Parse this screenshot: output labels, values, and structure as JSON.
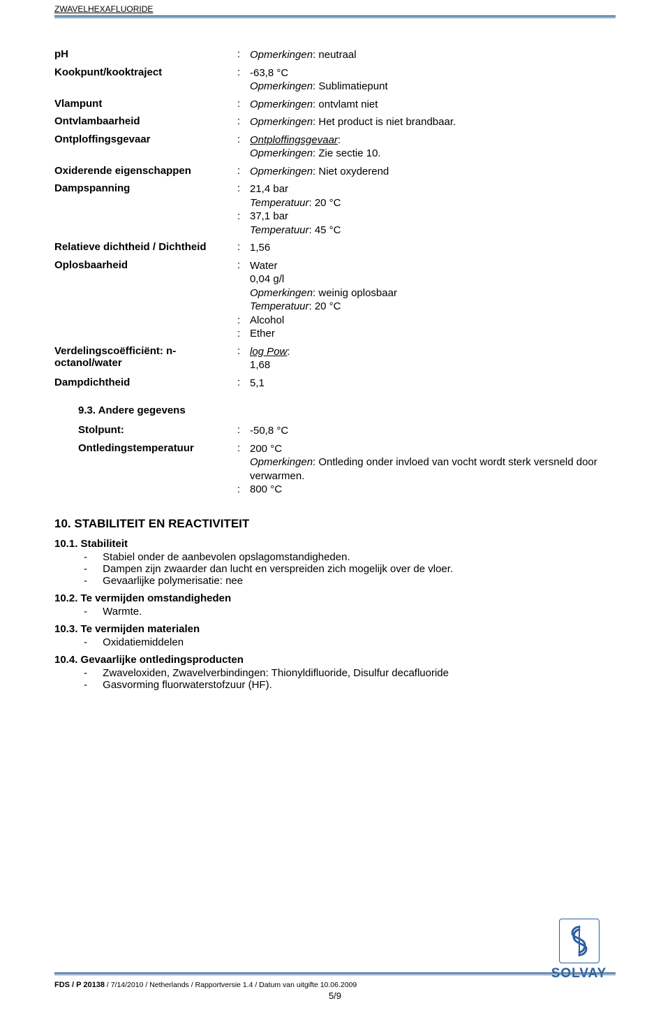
{
  "header": {
    "title": "ZWAVELHEXAFLUORIDE"
  },
  "properties": [
    {
      "label": "pH",
      "values": [
        {
          "text": "Opmerkingen: neutraal",
          "italicPrefix": "Opmerkingen",
          "suffix": ": neutraal"
        }
      ]
    },
    {
      "label": "Kookpunt/kooktraject",
      "values": [
        {
          "text": "-63,8 °C"
        },
        {
          "noColon": true,
          "italicPrefix": "Opmerkingen",
          "suffix": ": Sublimatiepunt"
        }
      ]
    },
    {
      "label": "Vlampunt",
      "values": [
        {
          "italicPrefix": "Opmerkingen",
          "suffix": ": ontvlamt niet"
        }
      ]
    },
    {
      "label": "Ontvlambaarheid",
      "values": [
        {
          "italicPrefix": "Opmerkingen",
          "suffix": ": Het product is niet brandbaar."
        }
      ]
    },
    {
      "label": "Ontploffingsgevaar",
      "values": [
        {
          "underlineItalic": "Ontploffingsgevaar",
          "suffix": ":"
        },
        {
          "noColon": true,
          "italicPrefix": "Opmerkingen",
          "suffix": ": Zie sectie 10."
        }
      ]
    },
    {
      "label": "Oxiderende eigenschappen",
      "values": [
        {
          "italicPrefix": "Opmerkingen",
          "suffix": ": Niet oxyderend"
        }
      ]
    },
    {
      "label": "Dampspanning",
      "values": [
        {
          "text": "21,4 bar"
        },
        {
          "noColon": true,
          "italicPrefix": "Temperatuur",
          "suffix": ": 20 °C"
        },
        {
          "text": "37,1 bar"
        },
        {
          "noColon": true,
          "italicPrefix": "Temperatuur",
          "suffix": ": 45 °C"
        }
      ]
    },
    {
      "label": "Relatieve dichtheid / Dichtheid",
      "values": [
        {
          "text": "1,56"
        }
      ]
    },
    {
      "label": "Oplosbaarheid",
      "values": [
        {
          "text": "Water"
        },
        {
          "noColon": true,
          "text": "0,04 g/l"
        },
        {
          "noColon": true,
          "italicPrefix": "Opmerkingen",
          "suffix": ": weinig oplosbaar"
        },
        {
          "noColon": true,
          "italicPrefix": "Temperatuur",
          "suffix": ": 20 °C"
        },
        {
          "text": "Alcohol"
        },
        {
          "text": "Ether"
        }
      ]
    },
    {
      "label": "Verdelingscoëfficiënt: n-octanol/water",
      "values": [
        {
          "underlineItalic": "log Pow",
          "suffix": ":"
        },
        {
          "noColon": true,
          "text": "1,68"
        }
      ]
    },
    {
      "label": "Dampdichtheid",
      "values": [
        {
          "text": "5,1"
        }
      ]
    }
  ],
  "sub93": {
    "heading": "9.3. Andere gegevens",
    "rows": [
      {
        "label": "Stolpunt:",
        "values": [
          {
            "text": "-50,8 °C"
          }
        ]
      },
      {
        "label": "Ontledingstemperatuur",
        "values": [
          {
            "text": "200 °C"
          },
          {
            "noColon": true,
            "italicPrefix": "Opmerkingen",
            "suffix": ": Ontleding onder invloed van vocht wordt sterk versneld door verwarmen."
          },
          {
            "text": "800 °C"
          }
        ]
      }
    ]
  },
  "section10": {
    "heading": "10. STABILITEIT EN REACTIVITEIT",
    "s1": {
      "head": "10.1. Stabiliteit",
      "items": [
        "Stabiel onder de aanbevolen opslagomstandigheden.",
        "Dampen zijn zwaarder dan lucht en verspreiden zich mogelijk over de vloer.",
        "Gevaarlijke polymerisatie: nee"
      ]
    },
    "s2": {
      "head": "10.2. Te vermijden omstandigheden",
      "items": [
        "Warmte."
      ]
    },
    "s3": {
      "head": "10.3. Te vermijden materialen",
      "items": [
        "Oxidatiemiddelen"
      ]
    },
    "s4": {
      "head": "10.4. Gevaarlijke ontledingsproducten",
      "items": [
        "Zwaveloxiden, Zwavelverbindingen: Thionyldifluoride, Disulfur decafluoride",
        "Gasvorming fluorwaterstofzuur (HF)."
      ]
    }
  },
  "footer": {
    "code": "FDS / P 20138",
    "rest": " / 7/14/2010 / Netherlands / Rapportversie 1.4 / Datum van uitgifte  10.06.2009",
    "page": "5/9"
  },
  "logo": {
    "glyph": "⚕",
    "text": "SOLVAY"
  },
  "colors": {
    "rule": "#3f6d9b",
    "logo": "#2e5e9e"
  }
}
